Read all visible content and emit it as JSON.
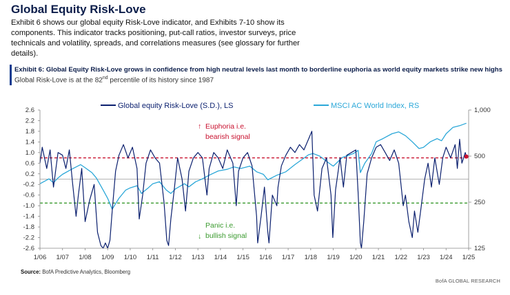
{
  "title": "Global Equity Risk-Love",
  "intro": "Exhibit 6 shows our global equity Risk-Love indicator, and Exhibits 7-10 show its components. This indicator tracks positioning, put-call ratios, investor surveys, price technicals and volatility, spreads, and correlations measures (see glossary for further details).",
  "exhibit": {
    "heading": "Exhibit 6: Global Equity Risk-Love grows in confidence from high neutral levels last month to borderline euphoria as world equity markets strike new highs",
    "sub_prefix": "Global Risk-Love is at the 82",
    "sub_sup": "nd",
    "sub_suffix": " percentile of its history since 1987"
  },
  "source_label": "Source:",
  "source_text": "BofA Predictive Analytics, Bloomberg",
  "brand": "BofA GLOBAL RESEARCH",
  "colors": {
    "riskLove": "#0a1f6e",
    "msci": "#2aa7d8",
    "euphoria": "#c8102e",
    "panic": "#3a9a2e",
    "axis": "#888888"
  },
  "chart_data": {
    "type": "line",
    "x_tick_labels": [
      "1/06",
      "1/07",
      "1/08",
      "1/09",
      "1/10",
      "1/11",
      "1/12",
      "1/13",
      "1/14",
      "1/15",
      "1/16",
      "1/17",
      "1/18",
      "1/19",
      "1/20",
      "1/21",
      "1/22",
      "1/23",
      "1/24",
      "1/25"
    ],
    "y_left_ticks": [
      "2.6",
      "2.2",
      "1.8",
      "1.4",
      "1.0",
      "0.6",
      "0.2",
      "-0.2",
      "-0.6",
      "-1.0",
      "-1.4",
      "-1.8",
      "-2.2",
      "-2.6"
    ],
    "y_left_range": [
      -2.6,
      2.6
    ],
    "y_right_ticks": [
      "1,000",
      "500",
      "250",
      "125"
    ],
    "y_right_values": [
      1000,
      500,
      250,
      125
    ],
    "y_right_range": [
      125,
      1000
    ],
    "y_right_scale": "log",
    "euphoria_threshold": 0.8,
    "panic_threshold": -0.9,
    "annotations": {
      "euphoria": {
        "arrow": "↑",
        "line1": "Euphoria  i.e.",
        "line2": "bearish signal"
      },
      "panic": {
        "arrow": "↓",
        "line1": "Panic i.e.",
        "line2": "bullish signal"
      }
    },
    "series": [
      {
        "name": "Global equity Risk-Love (S.D.), LS",
        "axis": "left",
        "x": [
          2006.0,
          2006.1,
          2006.3,
          2006.45,
          2006.6,
          2006.8,
          2007.0,
          2007.15,
          2007.3,
          2007.45,
          2007.6,
          2007.7,
          2007.85,
          2008.0,
          2008.2,
          2008.4,
          2008.55,
          2008.7,
          2008.8,
          2008.9,
          2009.0,
          2009.1,
          2009.2,
          2009.35,
          2009.5,
          2009.7,
          2009.9,
          2010.1,
          2010.3,
          2010.4,
          2010.55,
          2010.7,
          2010.9,
          2011.1,
          2011.3,
          2011.5,
          2011.62,
          2011.7,
          2011.8,
          2011.95,
          2012.1,
          2012.3,
          2012.45,
          2012.6,
          2012.8,
          2013.0,
          2013.2,
          2013.4,
          2013.5,
          2013.7,
          2013.9,
          2014.1,
          2014.3,
          2014.55,
          2014.7,
          2014.8,
          2015.0,
          2015.2,
          2015.4,
          2015.6,
          2015.65,
          2015.8,
          2015.95,
          2016.1,
          2016.15,
          2016.3,
          2016.5,
          2016.55,
          2016.7,
          2016.9,
          2017.1,
          2017.3,
          2017.5,
          2017.7,
          2017.9,
          2018.05,
          2018.15,
          2018.3,
          2018.5,
          2018.7,
          2018.9,
          2018.98,
          2019.1,
          2019.3,
          2019.45,
          2019.6,
          2019.8,
          2020.0,
          2020.1,
          2020.2,
          2020.25,
          2020.35,
          2020.5,
          2020.7,
          2020.9,
          2021.1,
          2021.3,
          2021.5,
          2021.7,
          2021.9,
          2022.0,
          2022.1,
          2022.2,
          2022.35,
          2022.5,
          2022.6,
          2022.75,
          2022.9,
          2023.05,
          2023.2,
          2023.35,
          2023.5,
          2023.7,
          2023.85,
          2024.0,
          2024.2,
          2024.4,
          2024.5,
          2024.6,
          2024.7,
          2024.85,
          2024.9
        ],
        "values": [
          0.6,
          1.2,
          0.4,
          1.1,
          -0.3,
          1.0,
          0.9,
          0.4,
          1.1,
          -0.2,
          -1.4,
          -0.6,
          0.4,
          -1.6,
          -0.8,
          -0.2,
          -2.0,
          -2.5,
          -2.6,
          -2.4,
          -2.6,
          -2.3,
          -1.2,
          0.3,
          0.9,
          1.3,
          0.8,
          1.2,
          0.4,
          -1.5,
          -0.6,
          0.6,
          1.1,
          0.8,
          0.6,
          -0.9,
          -2.3,
          -2.5,
          -1.5,
          -0.4,
          0.8,
          0.0,
          -1.2,
          0.3,
          0.8,
          1.0,
          0.8,
          -0.6,
          0.4,
          1.0,
          0.8,
          0.4,
          1.1,
          0.6,
          -1.0,
          0.3,
          0.8,
          1.0,
          0.5,
          -1.4,
          -2.4,
          -1.4,
          -0.3,
          -2.0,
          -2.4,
          -0.6,
          -1.0,
          -0.3,
          0.5,
          0.9,
          1.2,
          1.0,
          1.3,
          1.1,
          1.5,
          1.8,
          -0.6,
          -1.2,
          0.4,
          0.8,
          -0.6,
          -2.2,
          -0.4,
          0.8,
          -0.3,
          0.9,
          1.0,
          1.1,
          -0.5,
          -2.4,
          -2.6,
          -1.6,
          0.2,
          0.8,
          1.2,
          1.3,
          1.0,
          0.7,
          1.1,
          0.6,
          -0.2,
          -1.0,
          -0.6,
          -1.6,
          -2.2,
          -1.2,
          -2.0,
          -1.0,
          0.0,
          0.6,
          -0.3,
          0.8,
          -0.2,
          0.8,
          1.2,
          0.8,
          1.3,
          0.4,
          1.5,
          0.6,
          1.0,
          0.85
        ]
      },
      {
        "name": "MSCI AC World Index, RS",
        "axis": "right",
        "x": [
          2006.0,
          2006.4,
          2006.6,
          2006.8,
          2007.0,
          2007.4,
          2007.8,
          2008.0,
          2008.3,
          2008.5,
          2008.8,
          2009.0,
          2009.2,
          2009.5,
          2009.8,
          2010.0,
          2010.3,
          2010.5,
          2010.8,
          2011.0,
          2011.3,
          2011.6,
          2011.8,
          2012.0,
          2012.4,
          2012.6,
          2012.9,
          2013.2,
          2013.5,
          2013.9,
          2014.3,
          2014.6,
          2014.9,
          2015.3,
          2015.6,
          2015.9,
          2016.1,
          2016.5,
          2016.9,
          2017.3,
          2017.9,
          2018.1,
          2018.4,
          2018.9,
          2019.0,
          2019.4,
          2019.9,
          2020.1,
          2020.2,
          2020.4,
          2020.7,
          2020.9,
          2021.2,
          2021.6,
          2021.9,
          2022.2,
          2022.5,
          2022.8,
          2023.0,
          2023.3,
          2023.6,
          2023.8,
          2024.0,
          2024.3,
          2024.6,
          2024.9
        ],
        "values": [
          330,
          355,
          335,
          360,
          380,
          410,
          440,
          420,
          390,
          360,
          300,
          265,
          225,
          265,
          300,
          310,
          320,
          285,
          310,
          330,
          340,
          300,
          285,
          305,
          330,
          315,
          340,
          355,
          375,
          400,
          410,
          425,
          415,
          430,
          395,
          380,
          350,
          375,
          395,
          440,
          510,
          520,
          500,
          440,
          430,
          490,
          520,
          545,
          390,
          450,
          520,
          620,
          650,
          700,
          720,
          680,
          620,
          560,
          570,
          620,
          650,
          630,
          700,
          770,
          790,
          820
        ]
      }
    ]
  }
}
